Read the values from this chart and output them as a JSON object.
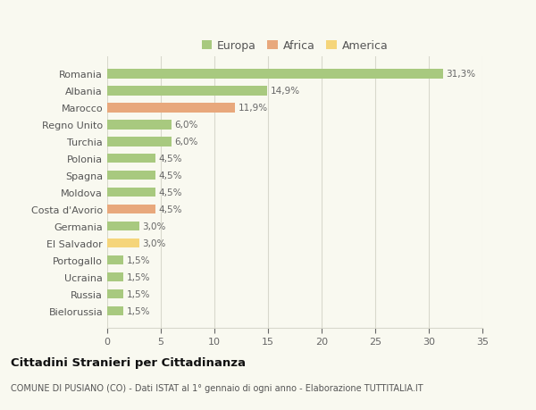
{
  "countries": [
    "Romania",
    "Albania",
    "Marocco",
    "Regno Unito",
    "Turchia",
    "Polonia",
    "Spagna",
    "Moldova",
    "Costa d'Avorio",
    "Germania",
    "El Salvador",
    "Portogallo",
    "Ucraina",
    "Russia",
    "Bielorussia"
  ],
  "values": [
    31.3,
    14.9,
    11.9,
    6.0,
    6.0,
    4.5,
    4.5,
    4.5,
    4.5,
    3.0,
    3.0,
    1.5,
    1.5,
    1.5,
    1.5
  ],
  "labels": [
    "31,3%",
    "14,9%",
    "11,9%",
    "6,0%",
    "6,0%",
    "4,5%",
    "4,5%",
    "4,5%",
    "4,5%",
    "3,0%",
    "3,0%",
    "1,5%",
    "1,5%",
    "1,5%",
    "1,5%"
  ],
  "continent": [
    "Europa",
    "Europa",
    "Africa",
    "Europa",
    "Europa",
    "Europa",
    "Europa",
    "Europa",
    "Africa",
    "Europa",
    "America",
    "Europa",
    "Europa",
    "Europa",
    "Europa"
  ],
  "colors": {
    "Europa": "#a8c97f",
    "Africa": "#e8a87c",
    "America": "#f5d57a"
  },
  "legend": [
    "Europa",
    "Africa",
    "America"
  ],
  "legend_colors": [
    "#a8c97f",
    "#e8a87c",
    "#f5d57a"
  ],
  "xlim": [
    0,
    35
  ],
  "xticks": [
    0,
    5,
    10,
    15,
    20,
    25,
    30,
    35
  ],
  "background_color": "#f9f9f0",
  "grid_color": "#d8d8cc",
  "title": "Cittadini Stranieri per Cittadinanza",
  "subtitle": "COMUNE DI PUSIANO (CO) - Dati ISTAT al 1° gennaio di ogni anno - Elaborazione TUTTITALIA.IT",
  "bar_height": 0.55
}
